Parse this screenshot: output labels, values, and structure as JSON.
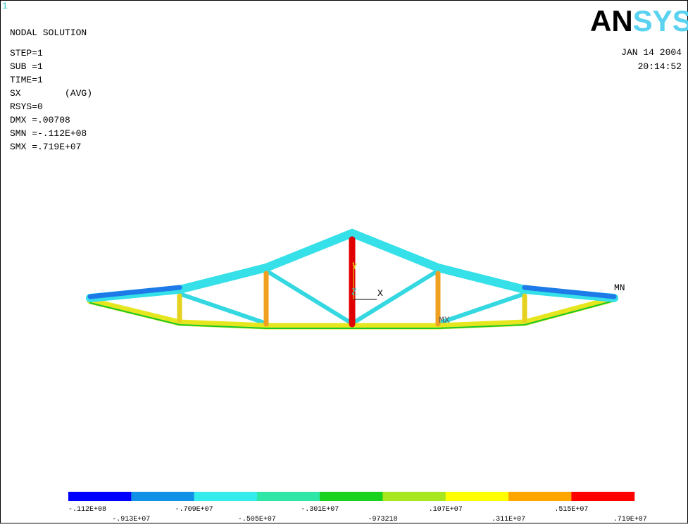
{
  "window": {
    "number": "1",
    "logo_a": "AN",
    "logo_b": "SYS",
    "date": "JAN 14 2004",
    "time": "20:14:52"
  },
  "info": [
    "NODAL SOLUTION",
    "STEP=1",
    "SUB =1",
    "TIME=1",
    "SX        (AVG)",
    "RSYS=0",
    "DMX =.00708",
    "SMN =-.112E+08",
    "SMX =.719E+07"
  ],
  "triad": {
    "y": "Y",
    "z": "Z",
    "x": "X"
  },
  "markers": {
    "mn": "MN",
    "mx": "MX"
  },
  "legend": {
    "labels": [
      "-.112E+08",
      "-.913E+07",
      "-.709E+07",
      "-.505E+07",
      "-.301E+07",
      "-973218",
      ".107E+07",
      ".311E+07",
      ".515E+07",
      ".719E+07"
    ],
    "colors": [
      "#0000ff",
      "#1190e8",
      "#35ecec",
      "#2ee6a6",
      "#19d21e",
      "#a8e61e",
      "#ffff00",
      "#ffa500",
      "#ff0000"
    ]
  }
}
